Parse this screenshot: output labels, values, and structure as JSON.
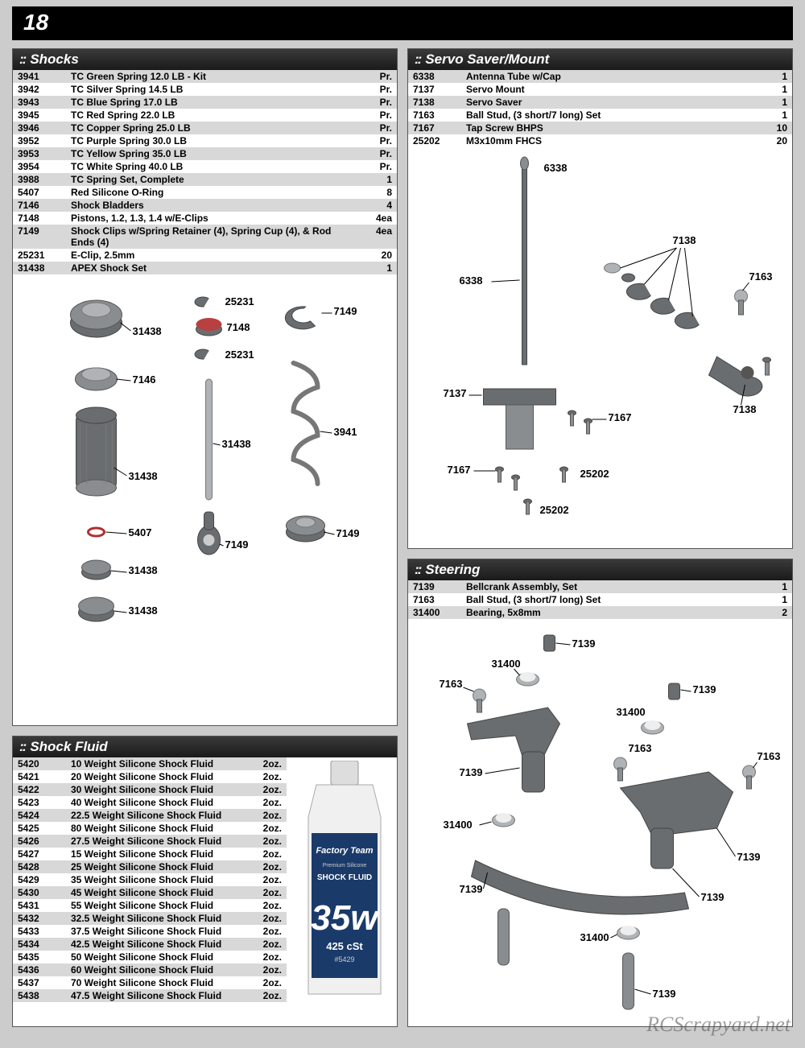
{
  "page_number": "18",
  "watermark": "RCScrapyard.net",
  "colors": {
    "page_bg": "#cccccc",
    "header_bg": "#000000",
    "section_title_bg": "#2a2a2a",
    "row_alt": "#d8d8d8",
    "part_gray": "#8a8d90",
    "part_dark": "#6a6d70",
    "line": "#000000"
  },
  "sections": {
    "shocks": {
      "title": "Shocks",
      "rows": [
        {
          "pn": "3941",
          "desc": "TC Green Spring 12.0 LB - Kit",
          "qty": "Pr."
        },
        {
          "pn": "3942",
          "desc": "TC Silver Spring 14.5 LB",
          "qty": "Pr."
        },
        {
          "pn": "3943",
          "desc": "TC Blue Spring 17.0 LB",
          "qty": "Pr."
        },
        {
          "pn": "3945",
          "desc": "TC Red Spring 22.0 LB",
          "qty": "Pr."
        },
        {
          "pn": "3946",
          "desc": "TC Copper Spring 25.0 LB",
          "qty": "Pr."
        },
        {
          "pn": "3952",
          "desc": "TC Purple Spring 30.0 LB",
          "qty": "Pr."
        },
        {
          "pn": "3953",
          "desc": "TC Yellow Spring 35.0 LB",
          "qty": "Pr."
        },
        {
          "pn": "3954",
          "desc": "TC White Spring 40.0 LB",
          "qty": "Pr."
        },
        {
          "pn": "3988",
          "desc": "TC Spring Set, Complete",
          "qty": "1"
        },
        {
          "pn": "5407",
          "desc": "Red Silicone O-Ring",
          "qty": "8"
        },
        {
          "pn": "7146",
          "desc": "Shock Bladders",
          "qty": "4"
        },
        {
          "pn": "7148",
          "desc": "Pistons, 1.2, 1.3, 1.4 w/E-Clips",
          "qty": "4ea"
        },
        {
          "pn": "7149",
          "desc": "Shock Clips w/Spring Retainer (4), Spring Cup (4), & Rod Ends (4)",
          "qty": "4ea"
        },
        {
          "pn": "25231",
          "desc": "E-Clip, 2.5mm",
          "qty": "20"
        },
        {
          "pn": "31438",
          "desc": "APEX Shock Set",
          "qty": "1"
        }
      ],
      "diagram_labels": [
        "31438",
        "7146",
        "31438",
        "5407",
        "31438",
        "31438",
        "25231",
        "7148",
        "25231",
        "31438",
        "7149",
        "7149",
        "3941",
        "7149"
      ]
    },
    "shock_fluid": {
      "title": "Shock Fluid",
      "rows": [
        {
          "pn": "5420",
          "desc": "10 Weight Silicone Shock Fluid",
          "qty": "2oz."
        },
        {
          "pn": "5421",
          "desc": "20 Weight Silicone Shock Fluid",
          "qty": "2oz."
        },
        {
          "pn": "5422",
          "desc": "30 Weight Silicone Shock Fluid",
          "qty": "2oz."
        },
        {
          "pn": "5423",
          "desc": "40 Weight Silicone Shock Fluid",
          "qty": "2oz."
        },
        {
          "pn": "5424",
          "desc": "22.5 Weight Silicone Shock Fluid",
          "qty": "2oz."
        },
        {
          "pn": "5425",
          "desc": "80 Weight Silicone Shock Fluid",
          "qty": "2oz."
        },
        {
          "pn": "5426",
          "desc": "27.5 Weight Silicone Shock Fluid",
          "qty": "2oz."
        },
        {
          "pn": "5427",
          "desc": "15 Weight Silicone Shock Fluid",
          "qty": "2oz."
        },
        {
          "pn": "5428",
          "desc": "25 Weight Silicone Shock Fluid",
          "qty": "2oz."
        },
        {
          "pn": "5429",
          "desc": "35 Weight Silicone Shock Fluid",
          "qty": "2oz."
        },
        {
          "pn": "5430",
          "desc": "45 Weight Silicone Shock Fluid",
          "qty": "2oz."
        },
        {
          "pn": "5431",
          "desc": "55 Weight Silicone Shock Fluid",
          "qty": "2oz."
        },
        {
          "pn": "5432",
          "desc": "32.5 Weight Silicone Shock Fluid",
          "qty": "2oz."
        },
        {
          "pn": "5433",
          "desc": "37.5 Weight Silicone Shock Fluid",
          "qty": "2oz."
        },
        {
          "pn": "5434",
          "desc": "42.5 Weight Silicone Shock Fluid",
          "qty": "2oz."
        },
        {
          "pn": "5435",
          "desc": "50 Weight Silicone Shock Fluid",
          "qty": "2oz."
        },
        {
          "pn": "5436",
          "desc": "60 Weight Silicone Shock Fluid",
          "qty": "2oz."
        },
        {
          "pn": "5437",
          "desc": "70 Weight Silicone Shock Fluid",
          "qty": "2oz."
        },
        {
          "pn": "5438",
          "desc": "47.5 Weight Silicone Shock Fluid",
          "qty": "2oz."
        }
      ],
      "bottle": {
        "brand": "Factory Team",
        "line1": "Premium Silicone",
        "line2": "SHOCK FLUID",
        "weight": "35w",
        "spec": "425 cSt",
        "pn": "#5429"
      }
    },
    "servo": {
      "title": "Servo Saver/Mount",
      "rows": [
        {
          "pn": "6338",
          "desc": "Antenna Tube w/Cap",
          "qty": "1"
        },
        {
          "pn": "7137",
          "desc": "Servo Mount",
          "qty": "1"
        },
        {
          "pn": "7138",
          "desc": "Servo Saver",
          "qty": "1"
        },
        {
          "pn": "7163",
          "desc": "Ball Stud, (3 short/7 long) Set",
          "qty": "1"
        },
        {
          "pn": "7167",
          "desc": "Tap Screw BHPS",
          "qty": "10"
        },
        {
          "pn": "25202",
          "desc": "M3x10mm FHCS",
          "qty": "20"
        }
      ],
      "diagram_labels": [
        "6338",
        "6338",
        "7138",
        "7163",
        "7137",
        "7167",
        "7138",
        "7167",
        "25202",
        "25202"
      ]
    },
    "steering": {
      "title": "Steering",
      "rows": [
        {
          "pn": "7139",
          "desc": "Bellcrank Assembly, Set",
          "qty": "1"
        },
        {
          "pn": "7163",
          "desc": "Ball Stud, (3 short/7 long) Set",
          "qty": "1"
        },
        {
          "pn": "31400",
          "desc": "Bearing, 5x8mm",
          "qty": "2"
        }
      ],
      "diagram_labels": [
        "7163",
        "31400",
        "7139",
        "7139",
        "31400",
        "7163",
        "7139",
        "7163",
        "31400",
        "7139",
        "7139",
        "7139",
        "31400",
        "7139"
      ]
    }
  }
}
